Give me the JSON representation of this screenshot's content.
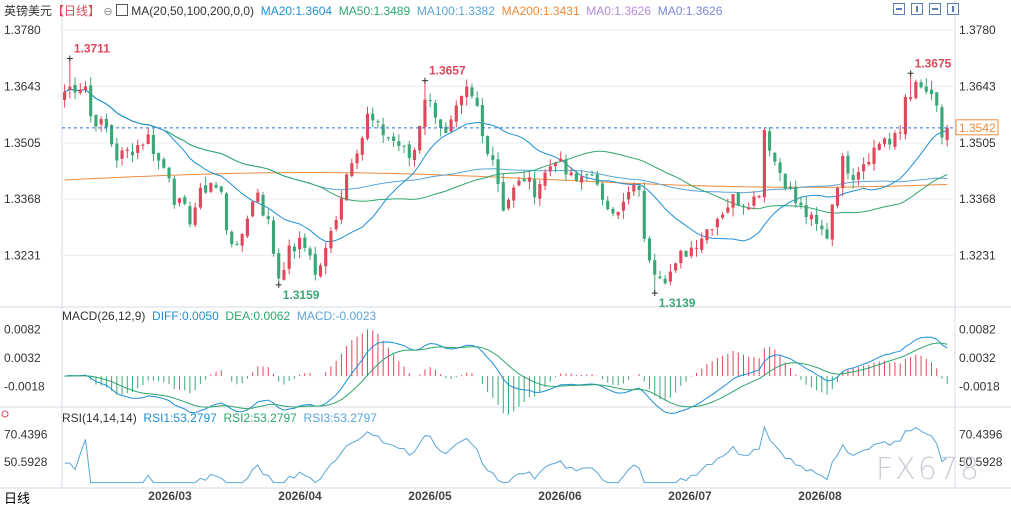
{
  "header": {
    "symbol": "英镑美元",
    "period_tag": "【日线】",
    "ma_icon": "gear-icon",
    "ma_label": "MA(20,50,100,200,0,0)",
    "ma_items": [
      {
        "text": "MA20:1.3604",
        "color": "#1e90d6"
      },
      {
        "text": "MA50:1.3489",
        "color": "#2fa66b"
      },
      {
        "text": "MA100:1.3382",
        "color": "#5aa6d8"
      },
      {
        "text": "MA200:1.3431",
        "color": "#f08a3c"
      },
      {
        "text": "MA0:1.3626",
        "color": "#b48ad8"
      },
      {
        "text": "MA0:1.3626",
        "color": "#7a88d8"
      }
    ]
  },
  "macd_header": {
    "label": "MACD(26,12,9)",
    "items": [
      {
        "text": "DIFF:0.0050",
        "color": "#1e90d6"
      },
      {
        "text": "DEA:0.0062",
        "color": "#2fa66b"
      },
      {
        "text": "MACD:-0.0023",
        "color": "#5aa6d8"
      }
    ]
  },
  "rsi_header": {
    "label": "RSI(14,14,14)",
    "items": [
      {
        "text": "RSI1:53.2797",
        "color": "#1e90d6"
      },
      {
        "text": "RSI2:53.2797",
        "color": "#2fa66b"
      },
      {
        "text": "RSI3:53.2797",
        "color": "#5aa6d8"
      }
    ]
  },
  "period_button": "日线",
  "watermark": "FX678",
  "colors": {
    "up": "#e0475b",
    "down": "#3aa876",
    "text": "#333333",
    "grid": "#e9edf3"
  },
  "chart_data": {
    "type": "candlestick",
    "price_ticks": [
      "1.3780",
      "1.3643",
      "1.3505",
      "1.3368",
      "1.3231"
    ],
    "price_tick_values": [
      1.378,
      1.3643,
      1.3505,
      1.3368,
      1.3231
    ],
    "price_range": [
      1.311,
      1.38
    ],
    "current_price": "1.3542",
    "current_price_value": 1.3542,
    "x_labels": [
      "2026/03",
      "2026/04",
      "2026/05",
      "2026/06",
      "2026/07",
      "2026/08"
    ],
    "annotations": [
      {
        "text": "1.3711",
        "value": 1.3711,
        "index": 1,
        "kind": "high"
      },
      {
        "text": "1.3657",
        "value": 1.3657,
        "index": 69,
        "kind": "high"
      },
      {
        "text": "1.3159",
        "value": 1.3159,
        "index": 41,
        "kind": "low"
      },
      {
        "text": "1.3139",
        "value": 1.3139,
        "index": 113,
        "kind": "low"
      },
      {
        "text": "1.3675",
        "value": 1.3675,
        "index": 162,
        "kind": "high"
      }
    ],
    "anchors": [
      [
        0,
        1.363
      ],
      [
        1,
        1.364
      ],
      [
        4,
        1.3645
      ],
      [
        5,
        1.357
      ],
      [
        8,
        1.354
      ],
      [
        10,
        1.347
      ],
      [
        13,
        1.349
      ],
      [
        16,
        1.352
      ],
      [
        18,
        1.346
      ],
      [
        20,
        1.343
      ],
      [
        21,
        1.337
      ],
      [
        23,
        1.334
      ],
      [
        24,
        1.332
      ],
      [
        26,
        1.338
      ],
      [
        28,
        1.341
      ],
      [
        30,
        1.338
      ],
      [
        31,
        1.33
      ],
      [
        33,
        1.324
      ],
      [
        35,
        1.333
      ],
      [
        37,
        1.339
      ],
      [
        38,
        1.334
      ],
      [
        39,
        1.331
      ],
      [
        40,
        1.324
      ],
      [
        41,
        1.318
      ],
      [
        43,
        1.324
      ],
      [
        45,
        1.326
      ],
      [
        47,
        1.324
      ],
      [
        48,
        1.318
      ],
      [
        50,
        1.324
      ],
      [
        52,
        1.333
      ],
      [
        54,
        1.343
      ],
      [
        55,
        1.347
      ],
      [
        57,
        1.352
      ],
      [
        58,
        1.357
      ],
      [
        60,
        1.354
      ],
      [
        62,
        1.352
      ],
      [
        64,
        1.35
      ],
      [
        66,
        1.347
      ],
      [
        67,
        1.349
      ],
      [
        69,
        1.362
      ],
      [
        71,
        1.358
      ],
      [
        73,
        1.352
      ],
      [
        75,
        1.358
      ],
      [
        77,
        1.363
      ],
      [
        79,
        1.359
      ],
      [
        80,
        1.352
      ],
      [
        82,
        1.347
      ],
      [
        84,
        1.335
      ],
      [
        86,
        1.339
      ],
      [
        88,
        1.342
      ],
      [
        90,
        1.339
      ],
      [
        92,
        1.343
      ],
      [
        94,
        1.347
      ],
      [
        96,
        1.343
      ],
      [
        98,
        1.341
      ],
      [
        100,
        1.344
      ],
      [
        102,
        1.339
      ],
      [
        104,
        1.336
      ],
      [
        106,
        1.333
      ],
      [
        108,
        1.338
      ],
      [
        110,
        1.34
      ],
      [
        111,
        1.326
      ],
      [
        113,
        1.32
      ],
      [
        115,
        1.318
      ],
      [
        117,
        1.32
      ],
      [
        118,
        1.323
      ],
      [
        120,
        1.325
      ],
      [
        122,
        1.328
      ],
      [
        124,
        1.331
      ],
      [
        126,
        1.334
      ],
      [
        128,
        1.337
      ],
      [
        130,
        1.336
      ],
      [
        132,
        1.337
      ],
      [
        133,
        1.339
      ],
      [
        134,
        1.354
      ],
      [
        136,
        1.346
      ],
      [
        138,
        1.341
      ],
      [
        140,
        1.336
      ],
      [
        142,
        1.333
      ],
      [
        144,
        1.33
      ],
      [
        146,
        1.328
      ],
      [
        147,
        1.336
      ],
      [
        149,
        1.346
      ],
      [
        151,
        1.343
      ],
      [
        153,
        1.346
      ],
      [
        155,
        1.349
      ],
      [
        157,
        1.352
      ],
      [
        158,
        1.35
      ],
      [
        160,
        1.353
      ],
      [
        161,
        1.362
      ],
      [
        163,
        1.364
      ],
      [
        165,
        1.363
      ],
      [
        167,
        1.359
      ],
      [
        168,
        1.352
      ],
      [
        169,
        1.3542
      ]
    ],
    "ma_series": [
      {
        "name": "MA20",
        "value": 1.3604
      },
      {
        "name": "MA50",
        "value": 1.3489
      },
      {
        "name": "MA100",
        "value": 1.3382
      },
      {
        "name": "MA200",
        "value": 1.3431
      }
    ],
    "macd": {
      "ticks": [
        "0.0082",
        "0.0032",
        "-0.0018"
      ],
      "tick_values": [
        0.0082,
        0.0032,
        -0.0018
      ],
      "range": [
        -0.0042,
        0.0095
      ],
      "diff": 0.005,
      "dea": 0.0062,
      "macd": -0.0023
    },
    "rsi": {
      "ticks": [
        "70.4396",
        "50.5928"
      ],
      "tick_values": [
        70.4396,
        50.5928
      ],
      "range": [
        35,
        78
      ],
      "rsi1": 53.2797,
      "rsi2": 53.2797,
      "rsi3": 53.2797
    }
  }
}
